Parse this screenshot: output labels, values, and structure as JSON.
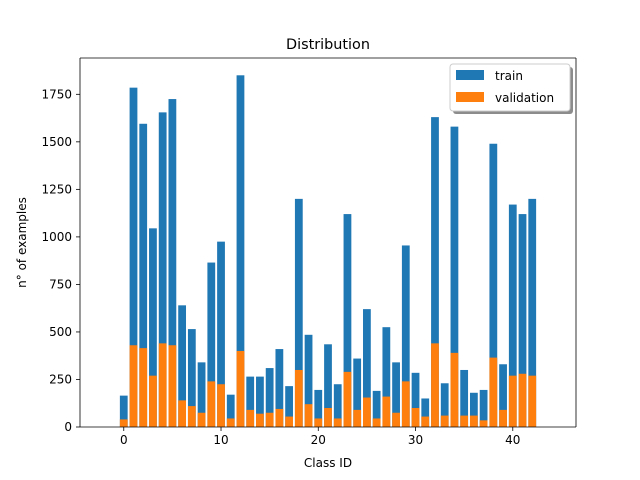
{
  "chart_data": {
    "type": "bar",
    "title": "Distribution",
    "xlabel": "Class ID",
    "ylabel": "n° of examples",
    "xlim": [
      -4.5,
      46.5
    ],
    "ylim": [
      0,
      1941
    ],
    "x_ticks": [
      0,
      10,
      20,
      30,
      40
    ],
    "y_ticks": [
      0,
      250,
      500,
      750,
      1000,
      1250,
      1500,
      1750
    ],
    "grid": false,
    "legend_position": "top-right",
    "categories": [
      0,
      1,
      2,
      3,
      4,
      5,
      6,
      7,
      8,
      9,
      10,
      11,
      12,
      13,
      14,
      15,
      16,
      17,
      18,
      19,
      20,
      21,
      22,
      23,
      24,
      25,
      26,
      27,
      28,
      29,
      30,
      31,
      32,
      33,
      34,
      35,
      36,
      37,
      38,
      39,
      40,
      41,
      42
    ],
    "series": [
      {
        "name": "train",
        "color": "#1f77b4",
        "values": [
          165,
          1785,
          1595,
          1045,
          1655,
          1725,
          640,
          515,
          340,
          865,
          975,
          170,
          1850,
          265,
          265,
          310,
          410,
          215,
          1200,
          485,
          195,
          435,
          225,
          1120,
          360,
          620,
          190,
          525,
          340,
          955,
          285,
          150,
          1630,
          230,
          1580,
          300,
          180,
          195,
          1490,
          330,
          1170,
          1120,
          1200
        ]
      },
      {
        "name": "validation",
        "color": "#ff7f0e",
        "values": [
          40,
          430,
          415,
          270,
          440,
          430,
          140,
          110,
          75,
          240,
          225,
          45,
          400,
          90,
          70,
          75,
          95,
          55,
          300,
          120,
          45,
          100,
          45,
          290,
          90,
          155,
          45,
          160,
          75,
          240,
          100,
          55,
          440,
          60,
          390,
          60,
          60,
          35,
          365,
          90,
          270,
          280,
          270
        ]
      }
    ]
  }
}
